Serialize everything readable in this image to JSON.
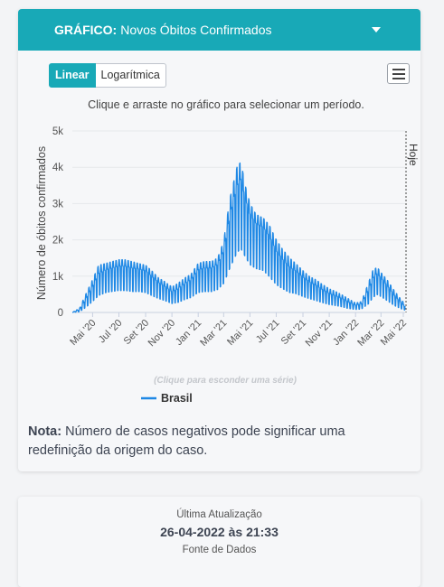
{
  "header": {
    "label": "GRÁFICO:",
    "title": "Novos Óbitos Confirmados"
  },
  "toggle": {
    "linear": "Linear",
    "log": "Logarítmica"
  },
  "chart_hint": "Clique e arraste no gráfico para selecionar um período.",
  "legend_hint": "(Clique para esconder uma série)",
  "note": {
    "label": "Nota:",
    "text": "Número de casos negativos pode significar uma redefinição da origem do caso."
  },
  "update": {
    "label": "Última Atualização",
    "date": "26-04-2022 às 21:33",
    "source_label": "Fonte de Dados"
  },
  "colors": {
    "accent": "#18a9b7",
    "series": "#1e88e5"
  },
  "chart_data": {
    "type": "line",
    "ylabel": "Número de óbitos confirmados",
    "xlabel": "",
    "ylim": [
      0,
      5000
    ],
    "y_ticks": [
      "0",
      "1k",
      "2k",
      "3k",
      "4k",
      "5k"
    ],
    "x_ticks": [
      "Mai '20",
      "Jul '20",
      "Set '20",
      "Nov '20",
      "Jan '21",
      "Mar '21",
      "Mai '21",
      "Jul '21",
      "Set '21",
      "Nov '21",
      "Jan '22",
      "Mar '22",
      "Mai '22"
    ],
    "annotation": "Hoje",
    "grid": true,
    "legend_position": "bottom",
    "series": [
      {
        "name": "Brasil",
        "x": [
          "2020-03-15",
          "2020-04-01",
          "2020-04-15",
          "2020-05-01",
          "2020-05-15",
          "2020-06-01",
          "2020-06-15",
          "2020-07-01",
          "2020-07-15",
          "2020-08-01",
          "2020-08-15",
          "2020-09-01",
          "2020-09-15",
          "2020-10-01",
          "2020-10-15",
          "2020-11-01",
          "2020-11-15",
          "2020-12-01",
          "2020-12-15",
          "2021-01-01",
          "2021-01-15",
          "2021-02-01",
          "2021-02-15",
          "2021-03-01",
          "2021-03-15",
          "2021-04-01",
          "2021-04-10",
          "2021-04-20",
          "2021-05-01",
          "2021-05-15",
          "2021-06-01",
          "2021-06-15",
          "2021-07-01",
          "2021-07-15",
          "2021-08-01",
          "2021-08-15",
          "2021-09-01",
          "2021-09-15",
          "2021-10-01",
          "2021-10-15",
          "2021-11-01",
          "2021-11-15",
          "2021-12-01",
          "2021-12-15",
          "2022-01-01",
          "2022-01-15",
          "2022-02-01",
          "2022-02-10",
          "2022-02-20",
          "2022-03-01",
          "2022-03-15",
          "2022-04-01",
          "2022-04-15",
          "2022-04-26"
        ],
        "values": [
          0,
          40,
          250,
          550,
          850,
          1000,
          1050,
          1100,
          1100,
          1050,
          1050,
          1000,
          850,
          700,
          600,
          450,
          500,
          650,
          750,
          1000,
          1050,
          1050,
          1150,
          1450,
          2200,
          3000,
          3200,
          2800,
          2400,
          2200,
          2100,
          1800,
          1400,
          1200,
          1000,
          950,
          800,
          700,
          600,
          500,
          400,
          350,
          280,
          200,
          150,
          180,
          450,
          750,
          900,
          800,
          600,
          350,
          200,
          120
        ],
        "peaks": [
          0,
          120,
          500,
          900,
          1300,
          1350,
          1400,
          1450,
          1450,
          1400,
          1350,
          1300,
          1150,
          950,
          850,
          700,
          800,
          950,
          1050,
          1350,
          1400,
          1400,
          1500,
          1950,
          3100,
          4000,
          4150,
          3500,
          3000,
          2700,
          2600,
          2400,
          2000,
          1750,
          1500,
          1350,
          1150,
          1000,
          900,
          780,
          650,
          580,
          480,
          380,
          260,
          300,
          850,
          1150,
          1250,
          1100,
          900,
          600,
          380,
          230
        ]
      }
    ]
  }
}
